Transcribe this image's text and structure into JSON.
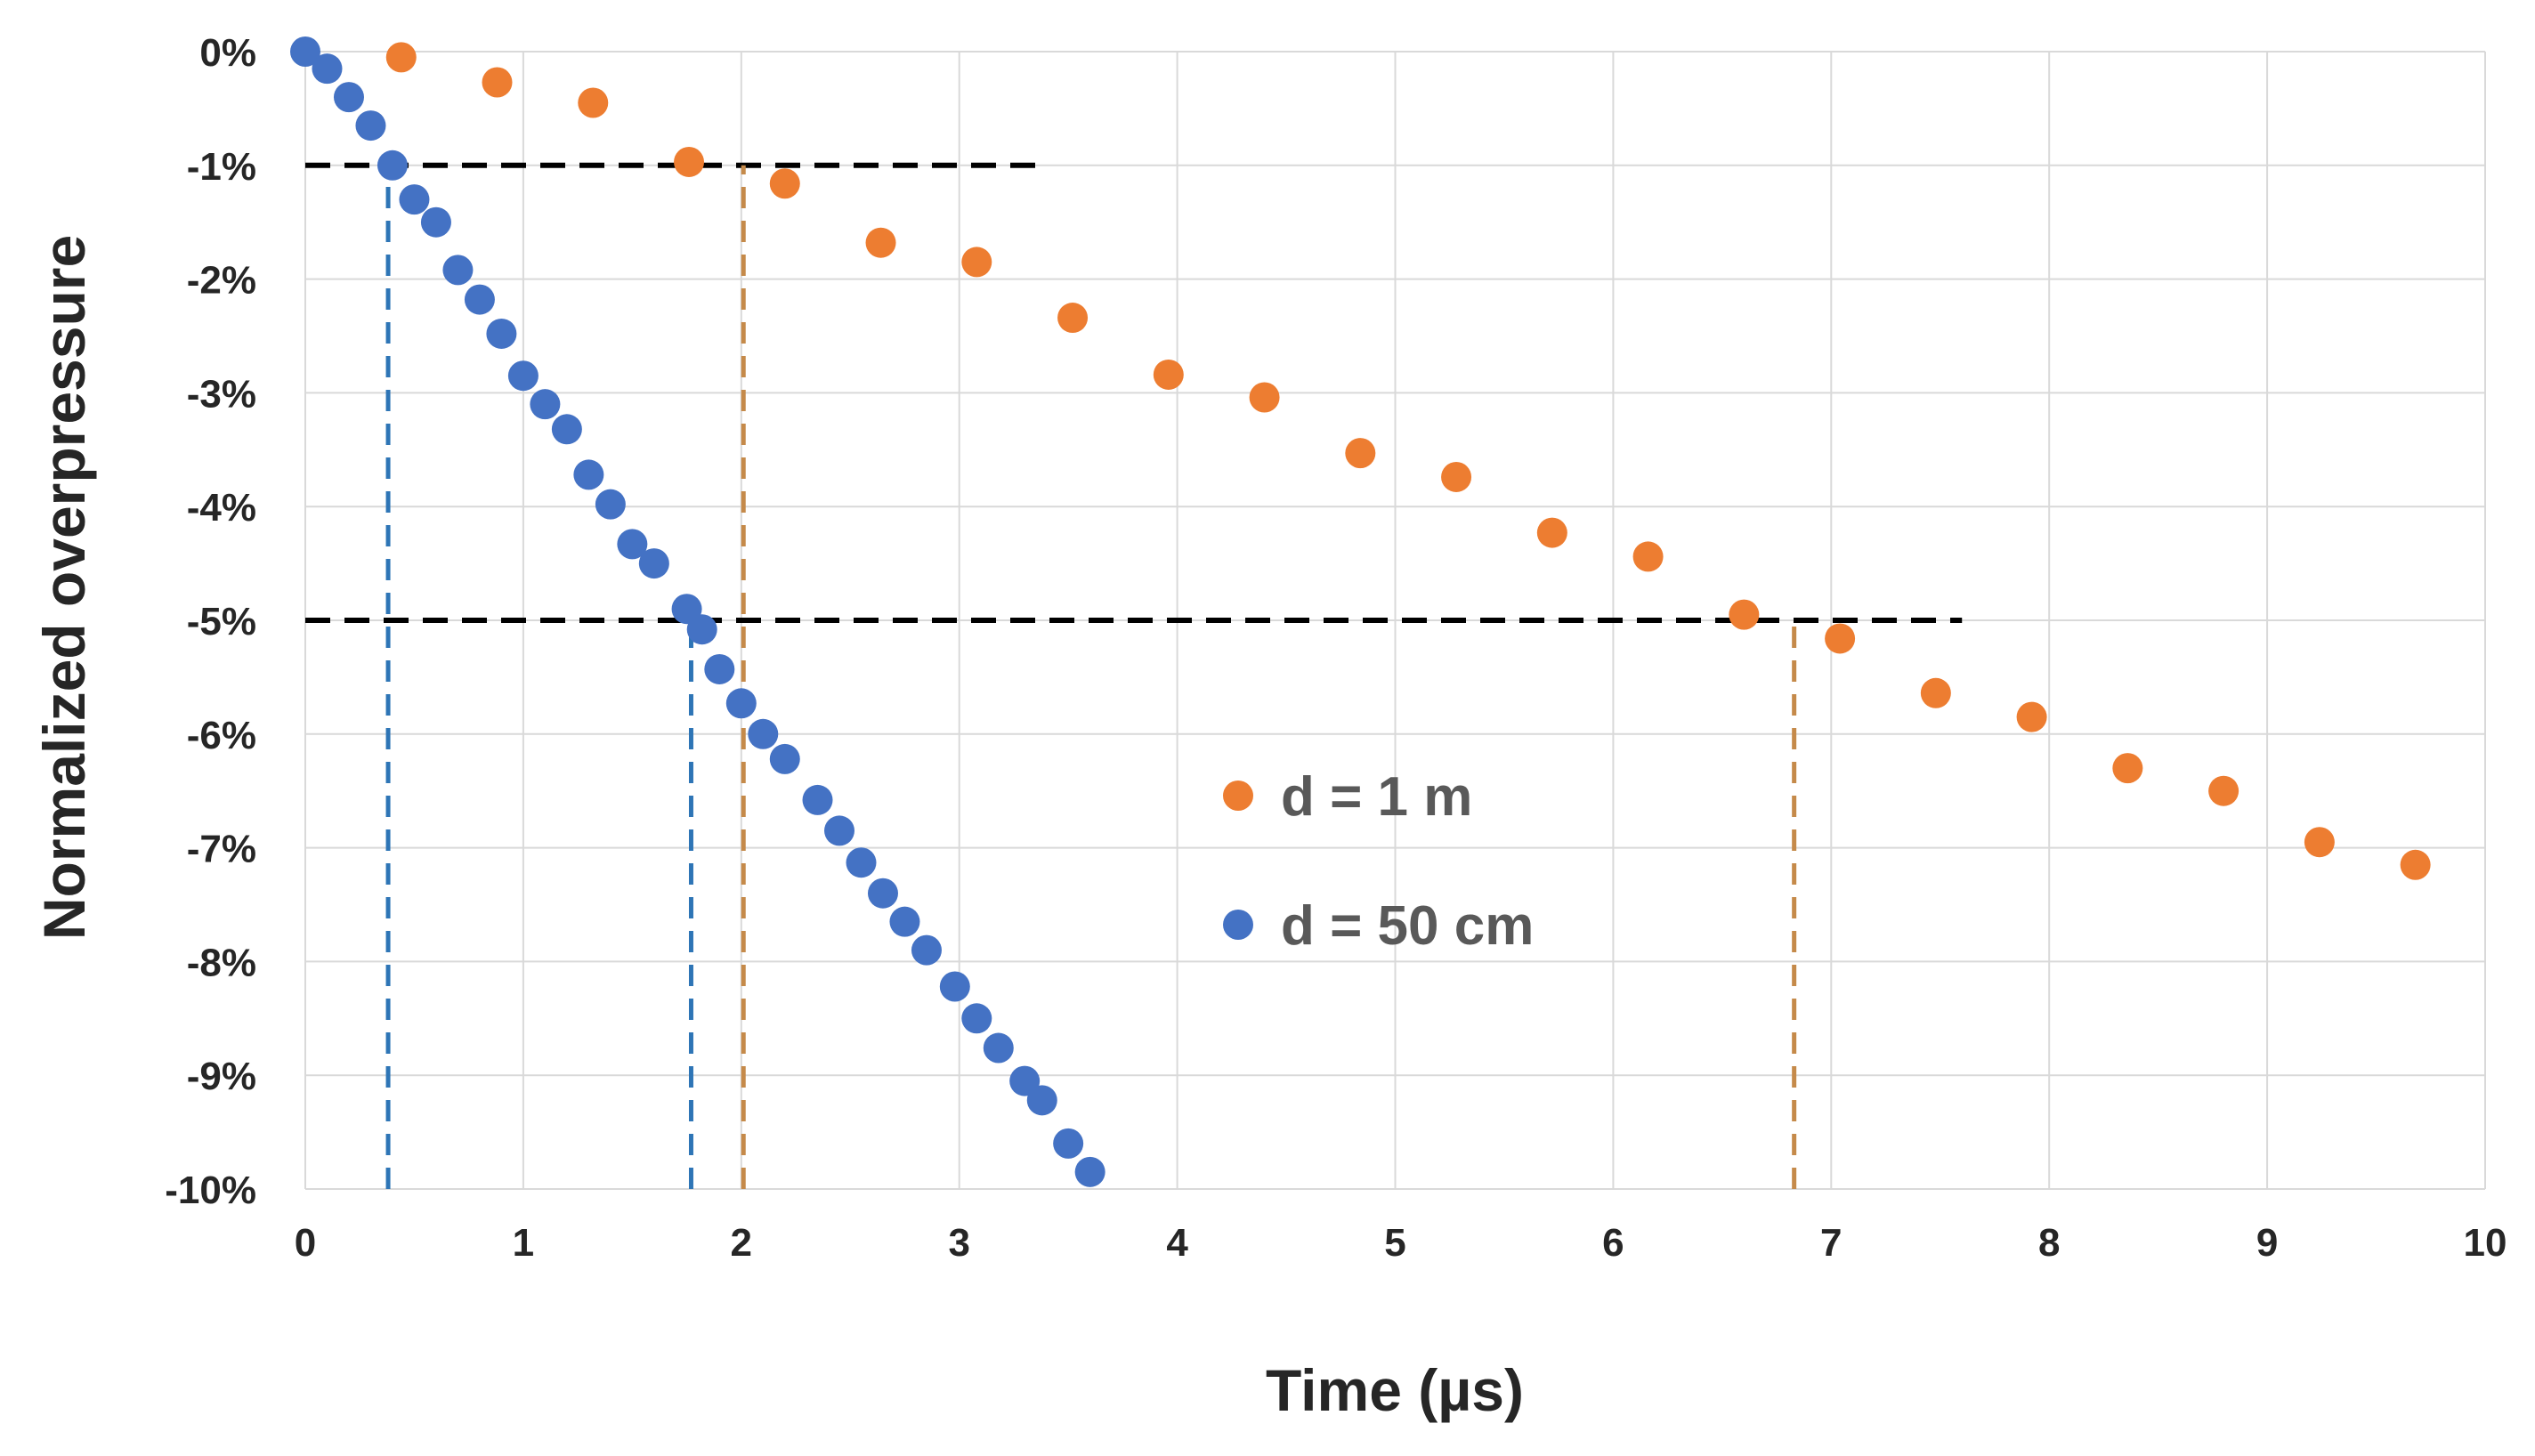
{
  "chart_data": {
    "type": "scatter",
    "xlabel": "Time (µs)",
    "ylabel": "Normalized overpressure",
    "xlim": [
      0,
      10
    ],
    "ylim": [
      -10,
      0
    ],
    "x_ticks": [
      0,
      1,
      2,
      3,
      4,
      5,
      6,
      7,
      8,
      9,
      10
    ],
    "x_tick_labels": [
      "0",
      "1",
      "2",
      "3",
      "4",
      "5",
      "6",
      "7",
      "8",
      "9",
      "10"
    ],
    "y_ticks": [
      0,
      -1,
      -2,
      -3,
      -4,
      -5,
      -6,
      -7,
      -8,
      -9,
      -10
    ],
    "y_tick_labels": [
      "0%",
      "-1%",
      "-2%",
      "-3%",
      "-4%",
      "-5%",
      "-6%",
      "-7%",
      "-8%",
      "-9%",
      "-10%"
    ],
    "grid": true,
    "legend_position": "center",
    "series": [
      {
        "name": "d = 1 m",
        "color": "#ed7d31",
        "x": [
          0.44,
          0.88,
          1.32,
          1.76,
          2.2,
          2.64,
          3.08,
          3.52,
          3.96,
          4.4,
          4.84,
          5.28,
          5.72,
          6.16,
          6.6,
          7.04,
          7.48,
          7.92,
          8.36,
          8.8,
          9.24,
          9.68
        ],
        "y": [
          -0.05,
          -0.27,
          -0.45,
          -0.97,
          -1.16,
          -1.68,
          -1.85,
          -2.34,
          -2.84,
          -3.04,
          -3.53,
          -3.74,
          -4.23,
          -4.44,
          -4.95,
          -5.16,
          -5.64,
          -5.85,
          -6.3,
          -6.5,
          -6.95,
          -7.15
        ]
      },
      {
        "name": "d = 50 cm",
        "color": "#4472c4",
        "x": [
          0,
          0.1,
          0.2,
          0.3,
          0.4,
          0.5,
          0.6,
          0.7,
          0.8,
          0.9,
          1.0,
          1.1,
          1.2,
          1.3,
          1.4,
          1.5,
          1.6,
          1.75,
          1.82,
          1.9,
          2.0,
          2.1,
          2.2,
          2.35,
          2.45,
          2.55,
          2.65,
          2.75,
          2.85,
          2.98,
          3.08,
          3.18,
          3.3,
          3.38,
          3.5,
          3.6
        ],
        "y": [
          0,
          -0.15,
          -0.4,
          -0.65,
          -1.0,
          -1.3,
          -1.5,
          -1.92,
          -2.18,
          -2.48,
          -2.85,
          -3.1,
          -3.32,
          -3.72,
          -3.98,
          -4.33,
          -4.5,
          -4.9,
          -5.08,
          -5.43,
          -5.73,
          -6.0,
          -6.22,
          -6.58,
          -6.85,
          -7.13,
          -7.4,
          -7.65,
          -7.9,
          -8.22,
          -8.5,
          -8.76,
          -9.05,
          -9.22,
          -9.6,
          -9.85
        ]
      }
    ],
    "reference_lines": [
      {
        "name": "h-ref-1pct",
        "orientation": "horizontal",
        "value": -1,
        "from": 0,
        "to": 3.35,
        "color": "#000000"
      },
      {
        "name": "h-ref-5pct",
        "orientation": "horizontal",
        "value": -5,
        "from": 0,
        "to": 7.6,
        "color": "#000000"
      },
      {
        "name": "v-ref-50cm-1pct",
        "orientation": "vertical",
        "value": 0.38,
        "from": -10,
        "to": -1,
        "color": "#2e75b6"
      },
      {
        "name": "v-ref-50cm-5pct",
        "orientation": "vertical",
        "value": 1.77,
        "from": -10,
        "to": -5,
        "color": "#2e75b6"
      },
      {
        "name": "v-ref-1m-1pct",
        "orientation": "vertical",
        "value": 2.01,
        "from": -10,
        "to": -1,
        "color": "#c58a4a"
      },
      {
        "name": "v-ref-1m-5pct",
        "orientation": "vertical",
        "value": 6.83,
        "from": -10,
        "to": -5,
        "color": "#c58a4a"
      }
    ]
  }
}
